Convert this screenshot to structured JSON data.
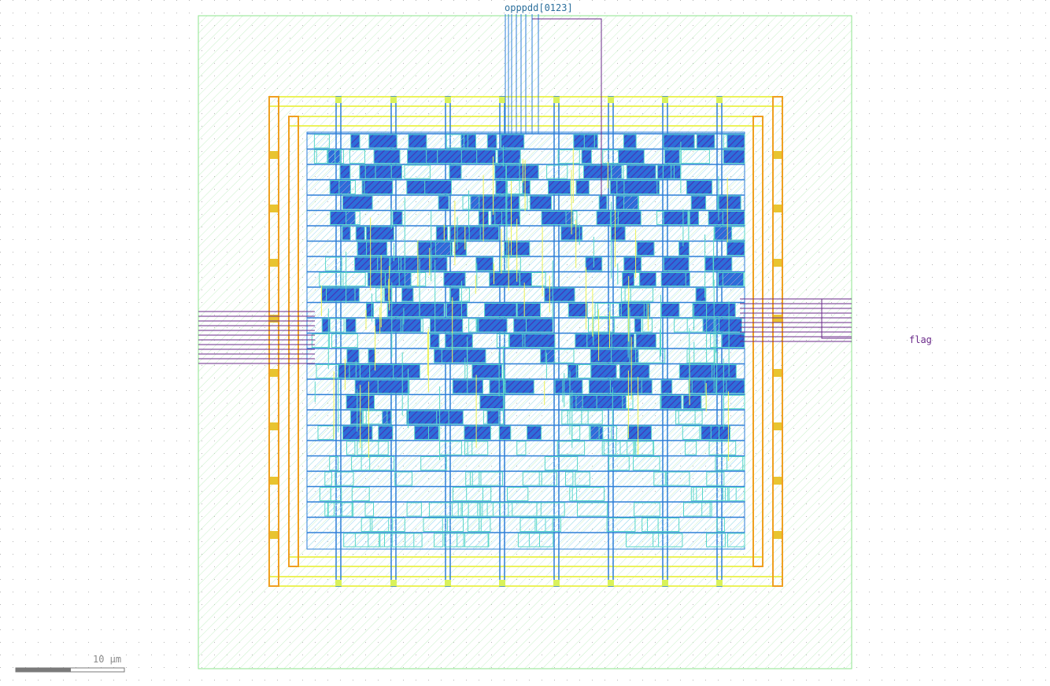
{
  "layout_view": {
    "pins": {
      "top_label": "opppdd[0123]",
      "right_label": "flag"
    },
    "scale_bar": {
      "label": "10 µm"
    },
    "colors": {
      "background": "#ffffff",
      "grid_dot": "#b5b5b5",
      "die_outline": "#8ee68e",
      "die_hatch": "#c9f0c9",
      "core_ring": "#ecf25a",
      "core_ring_vertical": "#f0a020",
      "metal_stripe": "#2e7fd8",
      "cell_fill": "#3b5bd6",
      "cell_outline": "#59d7c9",
      "pin_wire": "#6a2a8a",
      "top_pin_label": "#2b6f9c",
      "right_pin_label": "#6a2a8a",
      "scale_bar": "#7a7a7a"
    }
  }
}
